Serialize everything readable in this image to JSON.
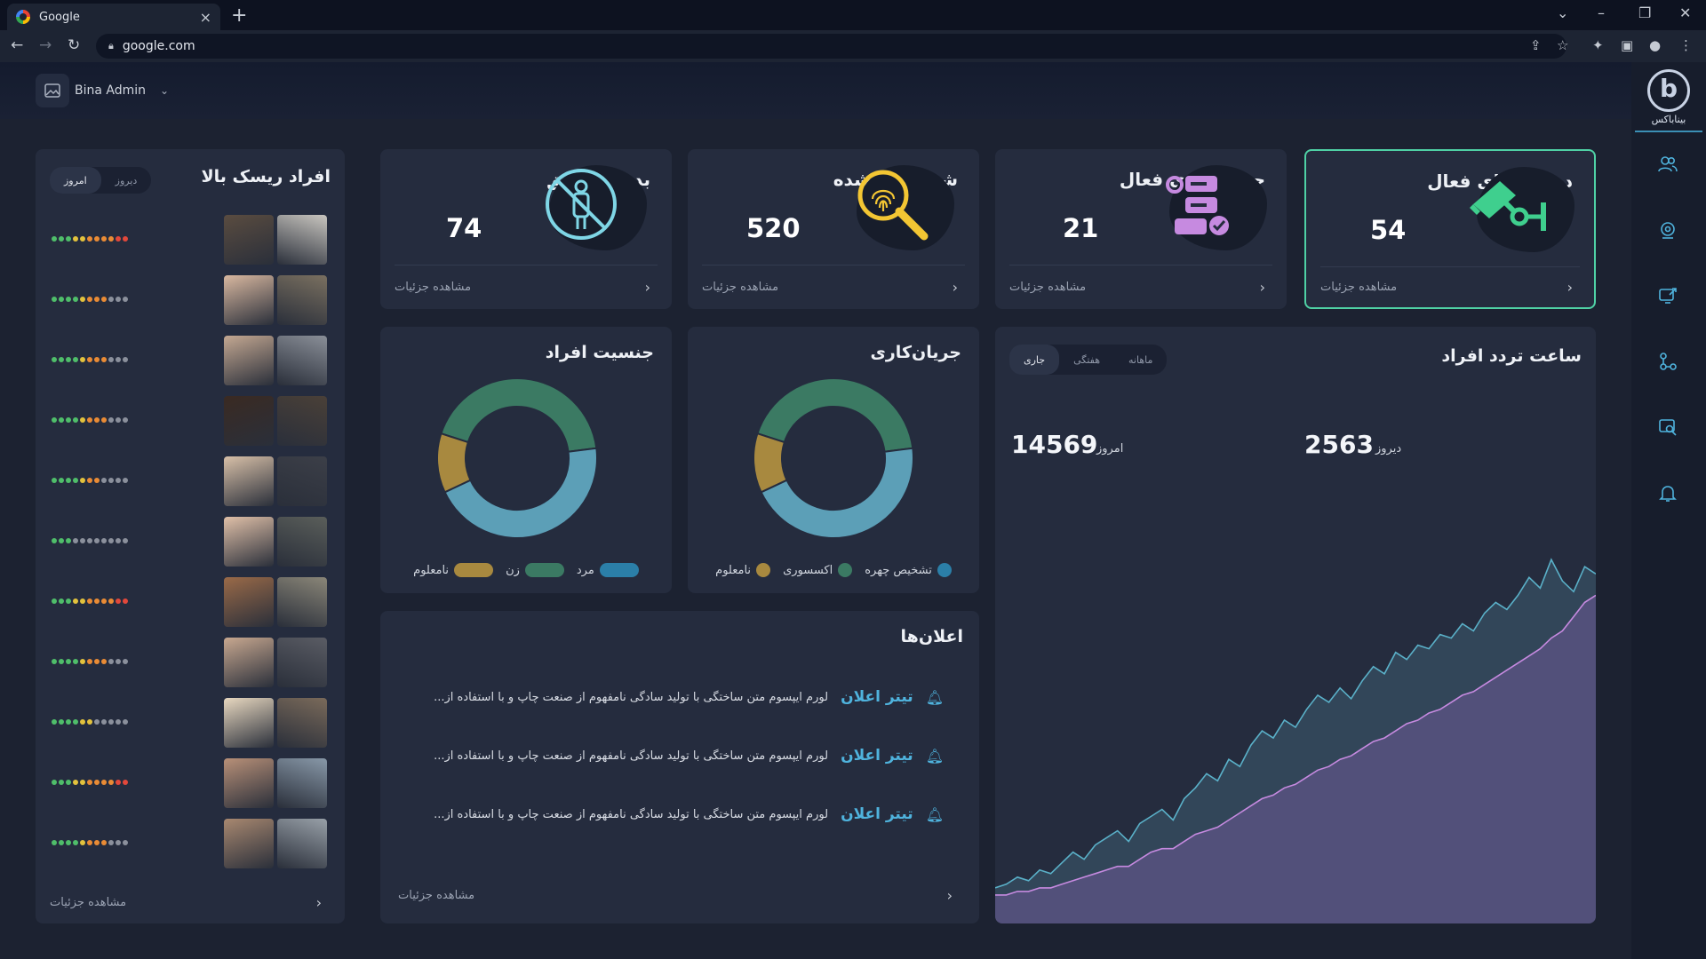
{
  "browser": {
    "tab_title": "Google",
    "url": "google.com"
  },
  "header": {
    "user_name": "Bina Admin"
  },
  "logo": {
    "text": "بیناباکس"
  },
  "sidebar_icons": [
    "users-icon",
    "webcam-icon",
    "export-icon",
    "workflow-icon",
    "search-image-icon",
    "bell-icon"
  ],
  "risk": {
    "title": "افراد ریسک بالا",
    "tab_today": "امروز",
    "tab_yesterday": "دیروز",
    "selected_tab": "امروز",
    "details": "مشاهده جزئیات",
    "colors": {
      "green": "#4fbe6a",
      "yellow": "#e3c23d",
      "orange": "#e98b35",
      "red": "#e2483b",
      "gray": "#8b909c"
    },
    "rows": [
      {
        "levels": [
          "green",
          "green",
          "green",
          "yellow",
          "yellow",
          "orange",
          "orange",
          "orange",
          "orange",
          "red",
          "red"
        ]
      },
      {
        "levels": [
          "green",
          "green",
          "green",
          "green",
          "yellow",
          "orange",
          "orange",
          "orange",
          "gray",
          "gray",
          "gray"
        ]
      },
      {
        "levels": [
          "green",
          "green",
          "green",
          "green",
          "yellow",
          "orange",
          "orange",
          "orange",
          "gray",
          "gray",
          "gray"
        ]
      },
      {
        "levels": [
          "green",
          "green",
          "green",
          "green",
          "yellow",
          "orange",
          "orange",
          "orange",
          "gray",
          "gray",
          "gray"
        ]
      },
      {
        "levels": [
          "green",
          "green",
          "green",
          "green",
          "yellow",
          "orange",
          "orange",
          "gray",
          "gray",
          "gray",
          "gray"
        ]
      },
      {
        "levels": [
          "green",
          "green",
          "green",
          "gray",
          "gray",
          "gray",
          "gray",
          "gray",
          "gray",
          "gray",
          "gray"
        ]
      },
      {
        "levels": [
          "green",
          "green",
          "green",
          "yellow",
          "yellow",
          "orange",
          "orange",
          "orange",
          "orange",
          "red",
          "red"
        ]
      },
      {
        "levels": [
          "green",
          "green",
          "green",
          "green",
          "yellow",
          "orange",
          "orange",
          "orange",
          "gray",
          "gray",
          "gray"
        ]
      },
      {
        "levels": [
          "green",
          "green",
          "green",
          "green",
          "yellow",
          "yellow",
          "gray",
          "gray",
          "gray",
          "gray",
          "gray"
        ]
      },
      {
        "levels": [
          "green",
          "green",
          "green",
          "yellow",
          "yellow",
          "orange",
          "orange",
          "orange",
          "orange",
          "red",
          "red"
        ]
      },
      {
        "levels": [
          "green",
          "green",
          "green",
          "green",
          "yellow",
          "orange",
          "orange",
          "orange",
          "gray",
          "gray",
          "gray"
        ]
      }
    ]
  },
  "stats": [
    {
      "title": "بدون تطبیق",
      "value": "74",
      "details": "مشاهده جزئیات"
    },
    {
      "title": "شناسایی شده",
      "value": "520",
      "details": "مشاهده جزئیات"
    },
    {
      "title": "جریان‌کاری فعال",
      "value": "21",
      "details": "مشاهده جزئیات"
    },
    {
      "title": "دوربین‌های فعال",
      "value": "54",
      "details": "مشاهده جزئیات"
    }
  ],
  "gender_chart": {
    "title": "جنسیت افراد",
    "legend_male": "مرد",
    "legend_female": "زن",
    "legend_unknown": "نامعلوم"
  },
  "workflow_chart": {
    "title": "جریان‌کاری",
    "legend_face": "تشخیص چهره",
    "legend_accessory": "اکسسوری",
    "legend_unknown": "نامعلوم"
  },
  "traffic": {
    "title": "ساعت تردد افراد",
    "tab_current": "جاری",
    "tab_weekly": "هفتگی",
    "tab_monthly": "ماهانه",
    "yesterday_label": "دیروز",
    "yesterday_value": "2563",
    "today_label": "امروز",
    "today_value": "14569"
  },
  "notifications": {
    "title": "اعلان‌ها",
    "details": "مشاهده جزئیات",
    "items": [
      {
        "heading": "تیتر اعلان",
        "text": "لورم ایپسوم متن ساختگی با تولید سادگی نامفهوم از صنعت چاپ و با استفاده از..."
      },
      {
        "heading": "تیتر اعلان",
        "text": "لورم ایپسوم متن ساختگی با تولید سادگی نامفهوم از صنعت چاپ و با استفاده از..."
      },
      {
        "heading": "تیتر اعلان",
        "text": "لورم ایپسوم متن ساختگی با تولید سادگی نامفهوم از صنعت چاپ و با استفاده از..."
      }
    ]
  },
  "chart_data": [
    {
      "type": "pie",
      "labels": [
        "مرد",
        "زن",
        "نامعلوم"
      ],
      "values": [
        45,
        43,
        12
      ],
      "colors": [
        "#5c9fb7",
        "#3b7a63",
        "#a8893f"
      ]
    },
    {
      "type": "pie",
      "labels": [
        "تشخیص چهره",
        "اکسسوری",
        "نامعلوم"
      ],
      "values": [
        45,
        43,
        12
      ],
      "colors": [
        "#5c9fb7",
        "#3b7a63",
        "#a8893f"
      ]
    },
    {
      "type": "area",
      "series": [
        {
          "color": "#5ab0c8",
          "values": [
            8,
            9,
            11,
            10,
            13,
            12,
            15,
            18,
            16,
            20,
            22,
            24,
            21,
            26,
            28,
            30,
            27,
            33,
            36,
            40,
            38,
            44,
            42,
            48,
            52,
            50,
            55,
            53,
            58,
            62,
            60,
            64,
            61,
            66,
            70,
            68,
            74,
            72,
            76,
            75,
            79,
            78,
            82,
            80,
            85,
            88,
            86,
            90,
            95,
            92,
            100,
            94,
            91,
            98,
            96
          ]
        },
        {
          "color": "#c68ae0",
          "values": [
            6,
            6,
            7,
            7,
            8,
            8,
            9,
            10,
            11,
            12,
            13,
            14,
            14,
            16,
            18,
            19,
            19,
            21,
            23,
            24,
            25,
            27,
            29,
            31,
            33,
            34,
            36,
            37,
            39,
            41,
            42,
            44,
            45,
            47,
            49,
            50,
            52,
            54,
            55,
            57,
            58,
            60,
            62,
            63,
            65,
            67,
            69,
            71,
            73,
            75,
            78,
            80,
            84,
            88,
            90
          ]
        }
      ]
    }
  ]
}
